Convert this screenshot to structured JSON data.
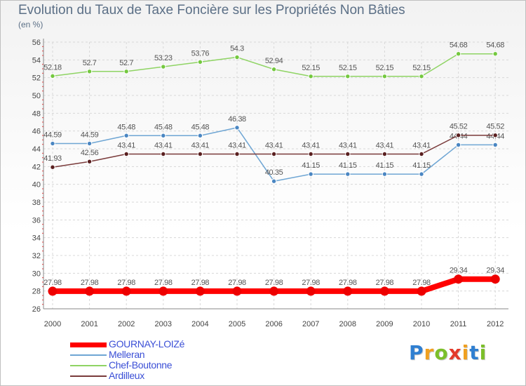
{
  "title": "Evolution du Taux de Taxe Foncière sur les Propriétés Non Bâties",
  "subtitle": "(en %)",
  "logo": {
    "letters": [
      {
        "ch": "P",
        "color": "#2f7fd1"
      },
      {
        "ch": "r",
        "color": "#f0a020"
      },
      {
        "ch": "o",
        "color": "#7cbf2a"
      },
      {
        "ch": "x",
        "color": "#e33a2a"
      },
      {
        "ch": "i",
        "color": "#f0a020"
      },
      {
        "ch": "t",
        "color": "#2f7fd1"
      },
      {
        "ch": "i",
        "color": "#7cbf2a"
      }
    ]
  },
  "chart_data": {
    "type": "line",
    "title": "Evolution du Taux de Taxe Foncière sur les Propriétés Non Bâties",
    "ylabel": "(en %)",
    "xlabel": "",
    "ylim": [
      26,
      56
    ],
    "yticks": [
      26,
      28,
      30,
      32,
      34,
      36,
      38,
      40,
      42,
      44,
      46,
      48,
      50,
      52,
      54,
      56
    ],
    "categories": [
      "2000",
      "2001",
      "2002",
      "2003",
      "2004",
      "2005",
      "2006",
      "2007",
      "2008",
      "2009",
      "2010",
      "2011",
      "2012"
    ],
    "grid": true,
    "series": [
      {
        "name": "Chef-Boutonne",
        "color": "#8fd464",
        "marker": "#74c83f",
        "width": 1.5,
        "values": [
          52.18,
          52.7,
          52.7,
          53.23,
          53.76,
          54.3,
          52.94,
          52.15,
          52.15,
          52.15,
          52.15,
          54.68,
          54.68
        ],
        "labels": [
          "52.18",
          "52.7",
          "52.7",
          "53.23",
          "53.76",
          "54.3",
          "52.94",
          "52.15",
          "52.15",
          "52.15",
          "52.15",
          "54.68",
          "54.68"
        ]
      },
      {
        "name": "Melleran",
        "color": "#6fa6d4",
        "marker": "#4a86c2",
        "width": 1.5,
        "values": [
          44.59,
          44.59,
          45.48,
          45.48,
          45.48,
          46.38,
          40.35,
          41.15,
          41.15,
          41.15,
          41.15,
          44.44,
          44.44
        ],
        "labels": [
          "44.59",
          "44.59",
          "45.48",
          "45.48",
          "45.48",
          "46.38",
          "40.35",
          "41.15",
          "41.15",
          "41.15",
          "41.15",
          "44.44",
          "44.44"
        ]
      },
      {
        "name": "Ardilleux",
        "color": "#7a3b3b",
        "marker": "#5a2020",
        "width": 1.5,
        "values": [
          41.93,
          42.56,
          43.41,
          43.41,
          43.41,
          43.41,
          43.41,
          43.41,
          43.41,
          43.41,
          43.41,
          45.52,
          45.52
        ],
        "labels": [
          "41.93",
          "42.56",
          "43.41",
          "43.41",
          "43.41",
          "43.41",
          "43.41",
          "43.41",
          "43.41",
          "43.41",
          "43.41",
          "45.52",
          "45.52"
        ]
      },
      {
        "name": "GOURNAY-LOIZé",
        "color": "#ff0000",
        "marker": "#ee0000",
        "width": 8,
        "values": [
          27.98,
          27.98,
          27.98,
          27.98,
          27.98,
          27.98,
          27.98,
          27.98,
          27.98,
          27.98,
          27.98,
          29.34,
          29.34
        ],
        "labels": [
          "27.98",
          "27.98",
          "27.98",
          "27.98",
          "27.98",
          "27.98",
          "27.98",
          "27.98",
          "27.98",
          "27.98",
          "27.98",
          "29.34",
          "29.34"
        ]
      }
    ],
    "legend_order": [
      "GOURNAY-LOIZé",
      "Melleran",
      "Chef-Boutonne",
      "Ardilleux"
    ],
    "legend_position": "bottom-left"
  }
}
